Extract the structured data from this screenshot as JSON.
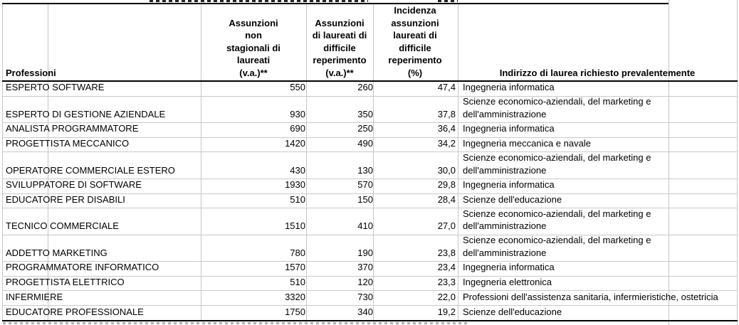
{
  "table": {
    "headers": {
      "professioni": "Professioni",
      "assunzioni_non_stagionali": "Assunzioni\nnon\nstagionali di\nlaureati\n(v.a.)**",
      "assunzioni_difficile": "Assunzioni\ndi laureati di\ndifficile\nreperimento\n(v.a.)**",
      "incidenza": "Incidenza\nassunzioni\nlaureati di\ndifficile\nreperimento\n(%)",
      "indirizzo": "Indirizzo di laurea richiesto prevalentemente"
    },
    "rows": [
      {
        "professione": "ESPERTO SOFTWARE",
        "assunzioni_non_stagionali": "550",
        "assunzioni_difficile": "260",
        "incidenza_pct": "47,4",
        "indirizzo": "Ingegneria informatica"
      },
      {
        "professione": "ESPERTO DI GESTIONE AZIENDALE",
        "assunzioni_non_stagionali": "930",
        "assunzioni_difficile": "350",
        "incidenza_pct": "37,8",
        "indirizzo": "Scienze economico-aziendali, del marketing e\ndell'amministrazione"
      },
      {
        "professione": "ANALISTA PROGRAMMATORE",
        "assunzioni_non_stagionali": "690",
        "assunzioni_difficile": "250",
        "incidenza_pct": "36,4",
        "indirizzo": "Ingegneria informatica"
      },
      {
        "professione": "PROGETTISTA MECCANICO",
        "assunzioni_non_stagionali": "1420",
        "assunzioni_difficile": "490",
        "incidenza_pct": "34,2",
        "indirizzo": "Ingegneria meccanica e navale"
      },
      {
        "professione": "OPERATORE COMMERCIALE ESTERO",
        "assunzioni_non_stagionali": "430",
        "assunzioni_difficile": "130",
        "incidenza_pct": "30,0",
        "indirizzo": "Scienze economico-aziendali, del marketing e\ndell'amministrazione"
      },
      {
        "professione": "SVILUPPATORE DI SOFTWARE",
        "assunzioni_non_stagionali": "1930",
        "assunzioni_difficile": "570",
        "incidenza_pct": "29,8",
        "indirizzo": "Ingegneria informatica"
      },
      {
        "professione": "EDUCATORE PER DISABILI",
        "assunzioni_non_stagionali": "510",
        "assunzioni_difficile": "150",
        "incidenza_pct": "28,4",
        "indirizzo": "Scienze dell'educazione"
      },
      {
        "professione": "TECNICO COMMERCIALE",
        "assunzioni_non_stagionali": "1510",
        "assunzioni_difficile": "410",
        "incidenza_pct": "27,0",
        "indirizzo": "Scienze economico-aziendali, del marketing e\ndell'amministrazione"
      },
      {
        "professione": "ADDETTO MARKETING",
        "assunzioni_non_stagionali": "780",
        "assunzioni_difficile": "190",
        "incidenza_pct": "23,8",
        "indirizzo": "Scienze economico-aziendali, del marketing e\ndell'amministrazione"
      },
      {
        "professione": "PROGRAMMATORE INFORMATICO",
        "assunzioni_non_stagionali": "1570",
        "assunzioni_difficile": "370",
        "incidenza_pct": "23,4",
        "indirizzo": "Ingegneria informatica"
      },
      {
        "professione": "PROGETTISTA ELETTRICO",
        "assunzioni_non_stagionali": "510",
        "assunzioni_difficile": "120",
        "incidenza_pct": "23,3",
        "indirizzo": "Ingegneria elettronica"
      },
      {
        "professione": "INFERMIERE",
        "assunzioni_non_stagionali": "3320",
        "assunzioni_difficile": "730",
        "incidenza_pct": "22,0",
        "indirizzo": "Professioni dell'assistenza sanitaria, infermieristiche, ostetricia"
      },
      {
        "professione": "EDUCATORE PROFESSIONALE",
        "assunzioni_non_stagionali": "1750",
        "assunzioni_difficile": "340",
        "incidenza_pct": "19,2",
        "indirizzo": "Scienze dell'educazione"
      }
    ]
  },
  "colors": {
    "grid_line": "#c6c6c6",
    "border": "#000000",
    "text": "#000000",
    "background": "#ffffff"
  },
  "chart_data": {
    "type": "table",
    "title": "",
    "columns": [
      "Professioni",
      "Assunzioni non stagionali di laureati (v.a.)**",
      "Assunzioni di laureati di difficile reperimento (v.a.)**",
      "Incidenza assunzioni laureati di difficile reperimento (%)",
      "Indirizzo di laurea richiesto prevalentemente"
    ],
    "rows": [
      [
        "ESPERTO SOFTWARE",
        550,
        260,
        "47,4",
        "Ingegneria informatica"
      ],
      [
        "ESPERTO DI GESTIONE AZIENDALE",
        930,
        350,
        "37,8",
        "Scienze economico-aziendali, del marketing e dell'amministrazione"
      ],
      [
        "ANALISTA PROGRAMMATORE",
        690,
        250,
        "36,4",
        "Ingegneria informatica"
      ],
      [
        "PROGETTISTA MECCANICO",
        1420,
        490,
        "34,2",
        "Ingegneria meccanica e navale"
      ],
      [
        "OPERATORE COMMERCIALE ESTERO",
        430,
        130,
        "30,0",
        "Scienze economico-aziendali, del marketing e dell'amministrazione"
      ],
      [
        "SVILUPPATORE DI SOFTWARE",
        1930,
        570,
        "29,8",
        "Ingegneria informatica"
      ],
      [
        "EDUCATORE PER DISABILI",
        510,
        150,
        "28,4",
        "Scienze dell'educazione"
      ],
      [
        "TECNICO COMMERCIALE",
        1510,
        410,
        "27,0",
        "Scienze economico-aziendali, del marketing e dell'amministrazione"
      ],
      [
        "ADDETTO MARKETING",
        780,
        190,
        "23,8",
        "Scienze economico-aziendali, del marketing e dell'amministrazione"
      ],
      [
        "PROGRAMMATORE INFORMATICO",
        1570,
        370,
        "23,4",
        "Ingegneria informatica"
      ],
      [
        "PROGETTISTA ELETTRICO",
        510,
        120,
        "23,3",
        "Ingegneria elettronica"
      ],
      [
        "INFERMIERE",
        3320,
        730,
        "22,0",
        "Professioni dell'assistenza sanitaria, infermieristiche, ostetricia"
      ],
      [
        "EDUCATORE PROFESSIONALE",
        1750,
        340,
        "19,2",
        "Scienze dell'educazione"
      ]
    ]
  }
}
